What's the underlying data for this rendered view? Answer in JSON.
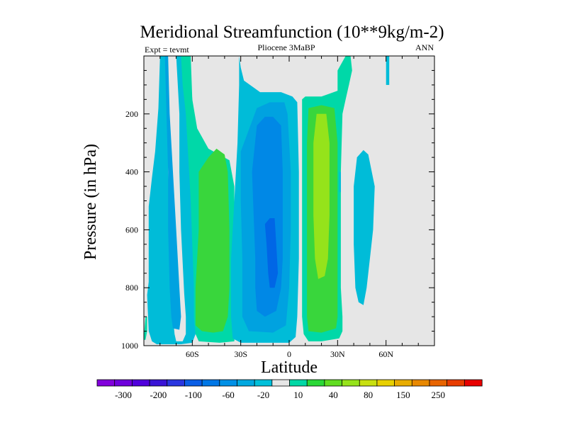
{
  "chart_data": {
    "type": "contour",
    "title": "Meridional Streamfunction (10**9kg/m-2)",
    "left_string": "Expt = tevmt",
    "center_string": "Pliocene  3MaBP",
    "right_string": "ANN",
    "xlabel": "Latitude",
    "ylabel": "Pressure (in hPa)",
    "xlim": [
      -90,
      90
    ],
    "ylim": [
      1000,
      0
    ],
    "xticks": [
      {
        "value": -60,
        "label": "60S"
      },
      {
        "value": -30,
        "label": "30S"
      },
      {
        "value": 0,
        "label": "0"
      },
      {
        "value": 30,
        "label": "30N"
      },
      {
        "value": 60,
        "label": "60N"
      }
    ],
    "yticks": [
      {
        "value": 200,
        "label": "200"
      },
      {
        "value": 400,
        "label": "400"
      },
      {
        "value": 600,
        "label": "600"
      },
      {
        "value": 800,
        "label": "800"
      },
      {
        "value": 1000,
        "label": "1000"
      }
    ],
    "background_color": "#e6e6e6",
    "contour_regions": [
      {
        "level": -20,
        "color": "#00bcd8",
        "points": [
          [
            -88,
            825
          ],
          [
            -87,
            780
          ],
          [
            -87,
            650
          ],
          [
            -87,
            520
          ],
          [
            -85,
            420
          ],
          [
            -83,
            330
          ],
          [
            -81,
            180
          ],
          [
            -80,
            0
          ],
          [
            -76,
            0
          ],
          [
            -75,
            200
          ],
          [
            -75,
            400
          ],
          [
            -74,
            600
          ],
          [
            -73,
            780
          ],
          [
            -72,
            900
          ],
          [
            -71,
            960
          ],
          [
            -70,
            985
          ],
          [
            -66,
            985
          ],
          [
            -64,
            960
          ],
          [
            -64,
            900
          ],
          [
            -65,
            820
          ],
          [
            -67,
            600
          ],
          [
            -68,
            400
          ],
          [
            -68,
            200
          ],
          [
            -70,
            0
          ],
          [
            -62,
            0
          ],
          [
            -60,
            150
          ],
          [
            -58,
            280
          ],
          [
            -58,
            500
          ],
          [
            -58,
            700
          ],
          [
            -57,
            850
          ],
          [
            -58,
            960
          ],
          [
            -60,
            990
          ],
          [
            -67,
            995
          ],
          [
            -82,
            995
          ],
          [
            -85,
            985
          ],
          [
            -87,
            950
          ]
        ]
      },
      {
        "level": -60,
        "color": "#00a2e0",
        "points": [
          [
            -80,
            0
          ],
          [
            -77,
            0
          ],
          [
            -76,
            200
          ],
          [
            -75,
            400
          ],
          [
            -75,
            600
          ],
          [
            -74,
            800
          ],
          [
            -73,
            900
          ],
          [
            -72,
            940
          ],
          [
            -68,
            945
          ],
          [
            -67,
            900
          ],
          [
            -68,
            800
          ],
          [
            -70,
            600
          ],
          [
            -72,
            400
          ],
          [
            -74,
            200
          ],
          [
            -75,
            0
          ],
          [
            -73,
            0
          ]
        ]
      },
      {
        "level": 10,
        "color": "#00d8a8",
        "points": [
          [
            -70,
            0
          ],
          [
            -61,
            0
          ],
          [
            -60,
            150
          ],
          [
            -57,
            250
          ],
          [
            -50,
            320
          ],
          [
            -37,
            360
          ],
          [
            -34,
            450
          ],
          [
            -34,
            600
          ],
          [
            -33,
            750
          ],
          [
            -33,
            900
          ],
          [
            -34,
            985
          ],
          [
            -43,
            990
          ],
          [
            -56,
            985
          ],
          [
            -58,
            960
          ],
          [
            -59,
            900
          ],
          [
            -59,
            800
          ],
          [
            -60,
            650
          ],
          [
            -61,
            500
          ],
          [
            -62,
            400
          ],
          [
            -63,
            300
          ],
          [
            -64,
            200
          ],
          [
            -66,
            100
          ],
          [
            -67,
            0
          ]
        ]
      },
      {
        "level": 10,
        "color": "#00d8a8",
        "points": [
          [
            -90,
            970
          ],
          [
            -90,
            980
          ],
          [
            -89,
            980
          ],
          [
            -88,
            950
          ],
          [
            -88,
            900
          ],
          [
            -89,
            900
          ]
        ]
      },
      {
        "level": -20,
        "color": "#00bcd8",
        "points": [
          [
            -31,
            0
          ],
          [
            -30,
            40
          ],
          [
            -28,
            85
          ],
          [
            -18,
            125
          ],
          [
            -5,
            125
          ],
          [
            2,
            140
          ],
          [
            5,
            160
          ],
          [
            6,
            400
          ],
          [
            6,
            700
          ],
          [
            5,
            900
          ],
          [
            4,
            970
          ],
          [
            0,
            990
          ],
          [
            -10,
            990
          ],
          [
            -30,
            990
          ],
          [
            -35,
            975
          ],
          [
            -36,
            900
          ],
          [
            -36,
            700
          ],
          [
            -34,
            500
          ],
          [
            -32,
            300
          ],
          [
            -31,
            100
          ]
        ]
      },
      {
        "level": -60,
        "color": "#00a2e0",
        "points": [
          [
            -30,
            330
          ],
          [
            -20,
            180
          ],
          [
            -12,
            160
          ],
          [
            -3,
            160
          ],
          [
            -1,
            200
          ],
          [
            1,
            400
          ],
          [
            1,
            600
          ],
          [
            0,
            800
          ],
          [
            -2,
            930
          ],
          [
            -10,
            955
          ],
          [
            -25,
            950
          ],
          [
            -29,
            900
          ],
          [
            -29,
            700
          ],
          [
            -30,
            500
          ]
        ]
      },
      {
        "level": -100,
        "color": "#0088e6",
        "points": [
          [
            -23,
            400
          ],
          [
            -20,
            240
          ],
          [
            -15,
            210
          ],
          [
            -10,
            210
          ],
          [
            -5,
            240
          ],
          [
            -4,
            400
          ],
          [
            -4,
            550
          ],
          [
            -4,
            700
          ],
          [
            -5,
            800
          ],
          [
            -8,
            880
          ],
          [
            -15,
            900
          ],
          [
            -20,
            880
          ],
          [
            -21,
            800
          ],
          [
            -21,
            700
          ],
          [
            -22,
            550
          ]
        ]
      },
      {
        "level": -150,
        "color": "#0066e6",
        "points": [
          [
            -15,
            580
          ],
          [
            -12,
            560
          ],
          [
            -9,
            560
          ],
          [
            -8,
            650
          ],
          [
            -7,
            750
          ],
          [
            -9,
            800
          ],
          [
            -12,
            800
          ],
          [
            -13,
            750
          ],
          [
            -14,
            650
          ]
        ]
      },
      {
        "level": 10,
        "color": "#00d8a8",
        "points": [
          [
            8,
            150
          ],
          [
            10,
            140
          ],
          [
            20,
            140
          ],
          [
            25,
            130
          ],
          [
            30,
            120
          ],
          [
            30,
            100
          ],
          [
            30,
            50
          ],
          [
            35,
            0
          ],
          [
            38,
            0
          ],
          [
            39,
            50
          ],
          [
            37,
            100
          ],
          [
            35,
            150
          ],
          [
            33,
            200
          ],
          [
            32,
            400
          ],
          [
            32,
            600
          ],
          [
            32,
            800
          ],
          [
            33,
            900
          ],
          [
            33,
            950
          ],
          [
            31,
            975
          ],
          [
            20,
            985
          ],
          [
            12,
            985
          ],
          [
            9,
            960
          ],
          [
            8,
            900
          ],
          [
            8,
            700
          ],
          [
            8,
            500
          ],
          [
            8,
            300
          ]
        ]
      },
      {
        "level": 10,
        "color": "#00d8a8",
        "points": [
          [
            35,
            0
          ],
          [
            37,
            0
          ],
          [
            38,
            50
          ],
          [
            37,
            100
          ],
          [
            35,
            120
          ],
          [
            34,
            80
          ]
        ]
      },
      {
        "level": 40,
        "color": "#39d63c",
        "points": [
          [
            11,
            300
          ],
          [
            12,
            180
          ],
          [
            20,
            170
          ],
          [
            28,
            180
          ],
          [
            30,
            300
          ],
          [
            30,
            600
          ],
          [
            30,
            800
          ],
          [
            30,
            900
          ],
          [
            29,
            940
          ],
          [
            20,
            955
          ],
          [
            12,
            950
          ],
          [
            11,
            900
          ],
          [
            11,
            700
          ],
          [
            11,
            500
          ]
        ]
      },
      {
        "level": 80,
        "color": "#95e31b",
        "points": [
          [
            15,
            300
          ],
          [
            17,
            200
          ],
          [
            23,
            200
          ],
          [
            25,
            300
          ],
          [
            25,
            550
          ],
          [
            24,
            700
          ],
          [
            22,
            760
          ],
          [
            18,
            770
          ],
          [
            16,
            700
          ],
          [
            15,
            550
          ]
        ]
      },
      {
        "level": 40,
        "color": "#39d63c",
        "points": [
          [
            -58,
            930
          ],
          [
            -58,
            800
          ],
          [
            -56,
            600
          ],
          [
            -56,
            400
          ],
          [
            -50,
            350
          ],
          [
            -45,
            320
          ],
          [
            -40,
            340
          ],
          [
            -38,
            400
          ],
          [
            -37,
            600
          ],
          [
            -37,
            800
          ],
          [
            -38,
            900
          ],
          [
            -41,
            950
          ],
          [
            -47,
            955
          ],
          [
            -54,
            950
          ]
        ]
      },
      {
        "level": -20,
        "color": "#00bcd8",
        "points": [
          [
            40,
            450
          ],
          [
            42,
            350
          ],
          [
            46,
            325
          ],
          [
            49,
            340
          ],
          [
            53,
            450
          ],
          [
            52,
            600
          ],
          [
            50,
            700
          ],
          [
            48,
            800
          ],
          [
            46,
            860
          ],
          [
            43,
            850
          ],
          [
            41,
            800
          ],
          [
            40,
            650
          ]
        ]
      },
      {
        "level": -20,
        "color": "#00bcd8",
        "points": [
          [
            31,
            400
          ],
          [
            32,
            400
          ],
          [
            32,
            470
          ],
          [
            31,
            470
          ]
        ]
      },
      {
        "level": 10,
        "color": "#00d8a8",
        "points": [
          [
            36,
            0
          ],
          [
            38,
            0
          ],
          [
            37,
            50
          ],
          [
            35,
            50
          ]
        ]
      },
      {
        "level": -20,
        "color": "#00bcd8",
        "points": [
          [
            60,
            0
          ],
          [
            62,
            0
          ],
          [
            62,
            100
          ],
          [
            60,
            100
          ]
        ]
      }
    ],
    "colorbar": {
      "colors": [
        "#8200dc",
        "#6e00dc",
        "#5000dc",
        "#3a14d6",
        "#2a36e0",
        "#0a5ee6",
        "#0077e6",
        "#0090e6",
        "#00a8e0",
        "#00c0da",
        "#e6e6e6",
        "#00d8a6",
        "#2ad836",
        "#60dd20",
        "#96e31b",
        "#c8e010",
        "#e8d000",
        "#e8ac00",
        "#e88800",
        "#e86400",
        "#e83c00",
        "#e80000"
      ],
      "labels": [
        "-300",
        "-200",
        "-100",
        "-60",
        "-20",
        "10",
        "40",
        "80",
        "150",
        "250"
      ]
    }
  }
}
